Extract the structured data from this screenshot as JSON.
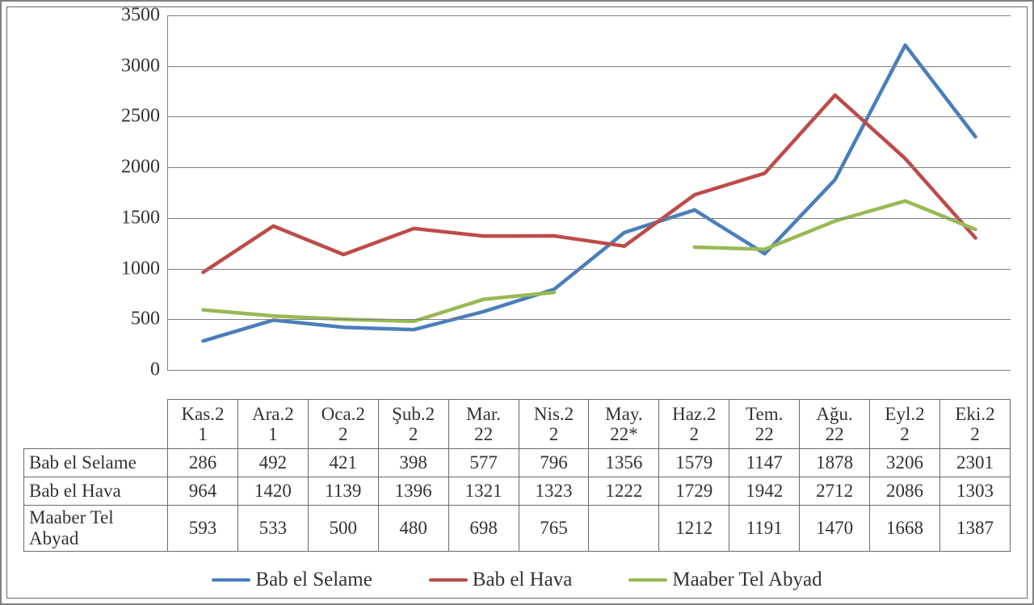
{
  "chart": {
    "type": "line",
    "background_color": "#ffffff",
    "grid_color": "#808080",
    "axis_color": "#808080",
    "line_width": 4.5,
    "ylim": [
      0,
      3500
    ],
    "ytick_step": 500,
    "yticks": [
      0,
      500,
      1000,
      1500,
      2000,
      2500,
      3000,
      3500
    ],
    "ytick_fontsize": 24,
    "categories": [
      "Kas.21",
      "Ara.21",
      "Oca.22",
      "Şub.22",
      "Mar.22",
      "Nis.22",
      "May.22*",
      "Haz.22",
      "Tem.22",
      "Ağu.22",
      "Eyl.22",
      "Eki.22"
    ],
    "category_labels_2line": [
      [
        "Kas.2",
        "1"
      ],
      [
        "Ara.2",
        "1"
      ],
      [
        "Oca.2",
        "2"
      ],
      [
        "Şub.2",
        "2"
      ],
      [
        "Mar.",
        "22"
      ],
      [
        "Nis.2",
        "2"
      ],
      [
        "May.",
        "22*"
      ],
      [
        "Haz.2",
        "2"
      ],
      [
        "Tem.",
        "22"
      ],
      [
        "Ağu.",
        "22"
      ],
      [
        "Eyl.2",
        "2"
      ],
      [
        "Eki.2",
        "2"
      ]
    ],
    "series": [
      {
        "name": "Bab el Selame",
        "color": "#4a7ebb",
        "values": [
          286,
          492,
          421,
          398,
          577,
          796,
          1356,
          1579,
          1147,
          1878,
          3206,
          2301
        ]
      },
      {
        "name": "Bab el Hava",
        "color": "#be4b48",
        "values": [
          964,
          1420,
          1139,
          1396,
          1321,
          1323,
          1222,
          1729,
          1942,
          2712,
          2086,
          1303
        ]
      },
      {
        "name": "Maaber Tel Abyad",
        "color": "#98b954",
        "values": [
          593,
          533,
          500,
          480,
          698,
          765,
          null,
          1212,
          1191,
          1470,
          1668,
          1387
        ]
      }
    ],
    "legend_fontsize": 25,
    "table_fontsize": 23
  }
}
